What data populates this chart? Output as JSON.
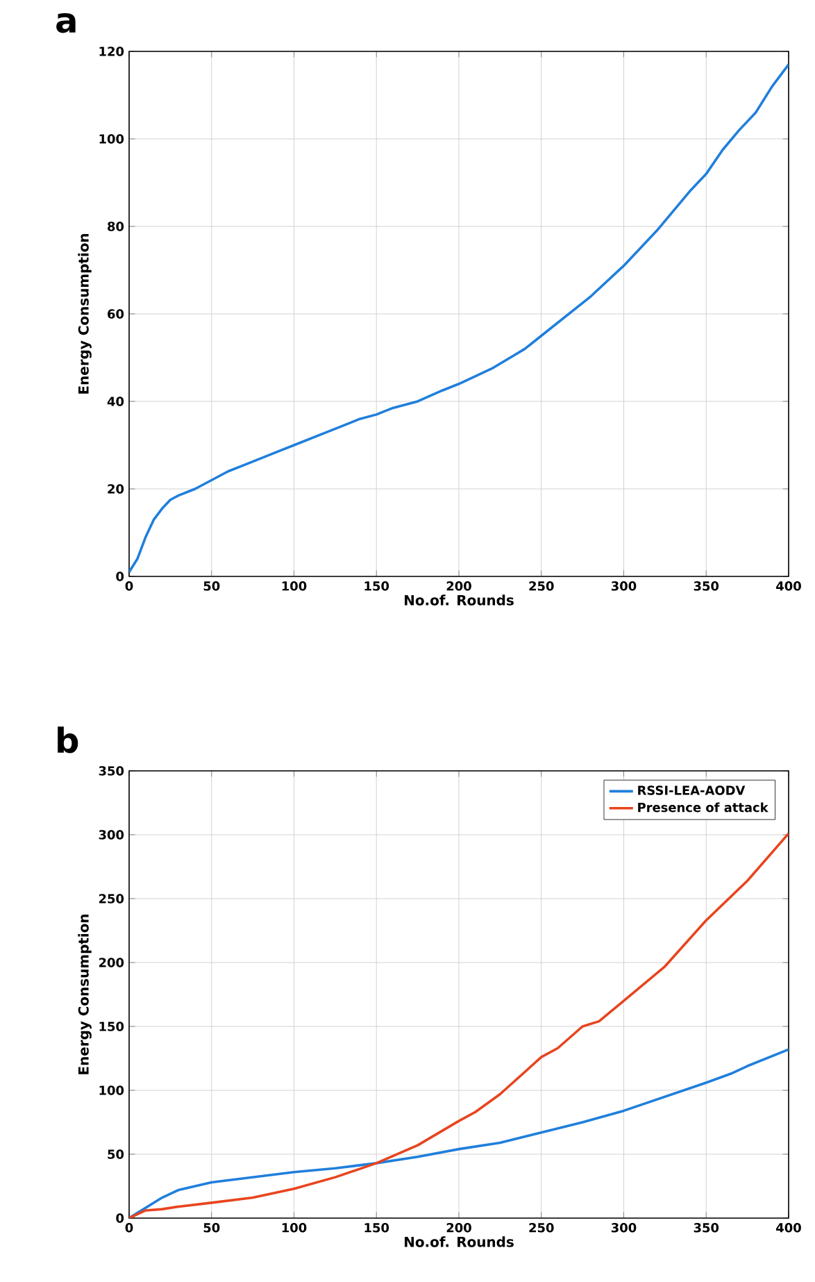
{
  "chart_data": [
    {
      "type": "line",
      "title": "a",
      "xlabel": "No.of. Rounds",
      "ylabel": "Energy Consumption",
      "xlim": [
        0,
        400
      ],
      "ylim": [
        0,
        120
      ],
      "xticks": [
        0,
        50,
        100,
        150,
        200,
        250,
        300,
        350,
        400
      ],
      "yticks": [
        0,
        20,
        40,
        60,
        80,
        100,
        120
      ],
      "grid": true,
      "series": [
        {
          "color": "#1f7fdc",
          "x": [
            0,
            5,
            10,
            15,
            20,
            25,
            30,
            40,
            50,
            60,
            70,
            80,
            90,
            100,
            120,
            140,
            150,
            160,
            175,
            190,
            200,
            220,
            240,
            250,
            260,
            280,
            300,
            320,
            340,
            350,
            360,
            370,
            380,
            390,
            400
          ],
          "values": [
            1,
            4,
            9,
            13,
            15.5,
            17.5,
            18.5,
            20,
            22,
            24,
            25.5,
            27,
            28.5,
            30,
            33,
            36,
            37,
            38.5,
            40,
            42.5,
            44,
            47.5,
            52,
            55,
            58,
            64,
            71,
            79,
            88,
            92,
            97.5,
            102,
            106,
            112,
            117
          ]
        }
      ]
    },
    {
      "type": "line",
      "title": "b",
      "xlabel": "No.of. Rounds",
      "ylabel": "Energy Consumption",
      "xlim": [
        0,
        400
      ],
      "ylim": [
        0,
        350
      ],
      "xticks": [
        0,
        50,
        100,
        150,
        200,
        250,
        300,
        350,
        400
      ],
      "yticks": [
        0,
        50,
        100,
        150,
        200,
        250,
        300,
        350
      ],
      "grid": true,
      "legend": "top right",
      "series": [
        {
          "name": "RSSI-LEA-AODV",
          "color": "#1f7fdc",
          "x": [
            0,
            10,
            20,
            30,
            40,
            50,
            75,
            100,
            125,
            150,
            175,
            200,
            225,
            250,
            275,
            300,
            325,
            350,
            365,
            375,
            400
          ],
          "values": [
            0,
            8,
            16,
            22,
            25,
            28,
            32,
            36,
            39,
            43,
            48,
            54,
            59,
            67,
            75,
            84,
            95,
            106,
            113,
            119,
            132
          ]
        },
        {
          "name": "Presence of attack",
          "color": "#e8441e",
          "x": [
            0,
            10,
            20,
            30,
            50,
            75,
            100,
            125,
            150,
            175,
            200,
            210,
            225,
            250,
            260,
            275,
            285,
            300,
            325,
            350,
            375,
            400
          ],
          "values": [
            0,
            6,
            7,
            9,
            12,
            16,
            23,
            32,
            43,
            57,
            76,
            83,
            97,
            126,
            133,
            150,
            154,
            170,
            197,
            233,
            264,
            301
          ]
        }
      ]
    }
  ]
}
